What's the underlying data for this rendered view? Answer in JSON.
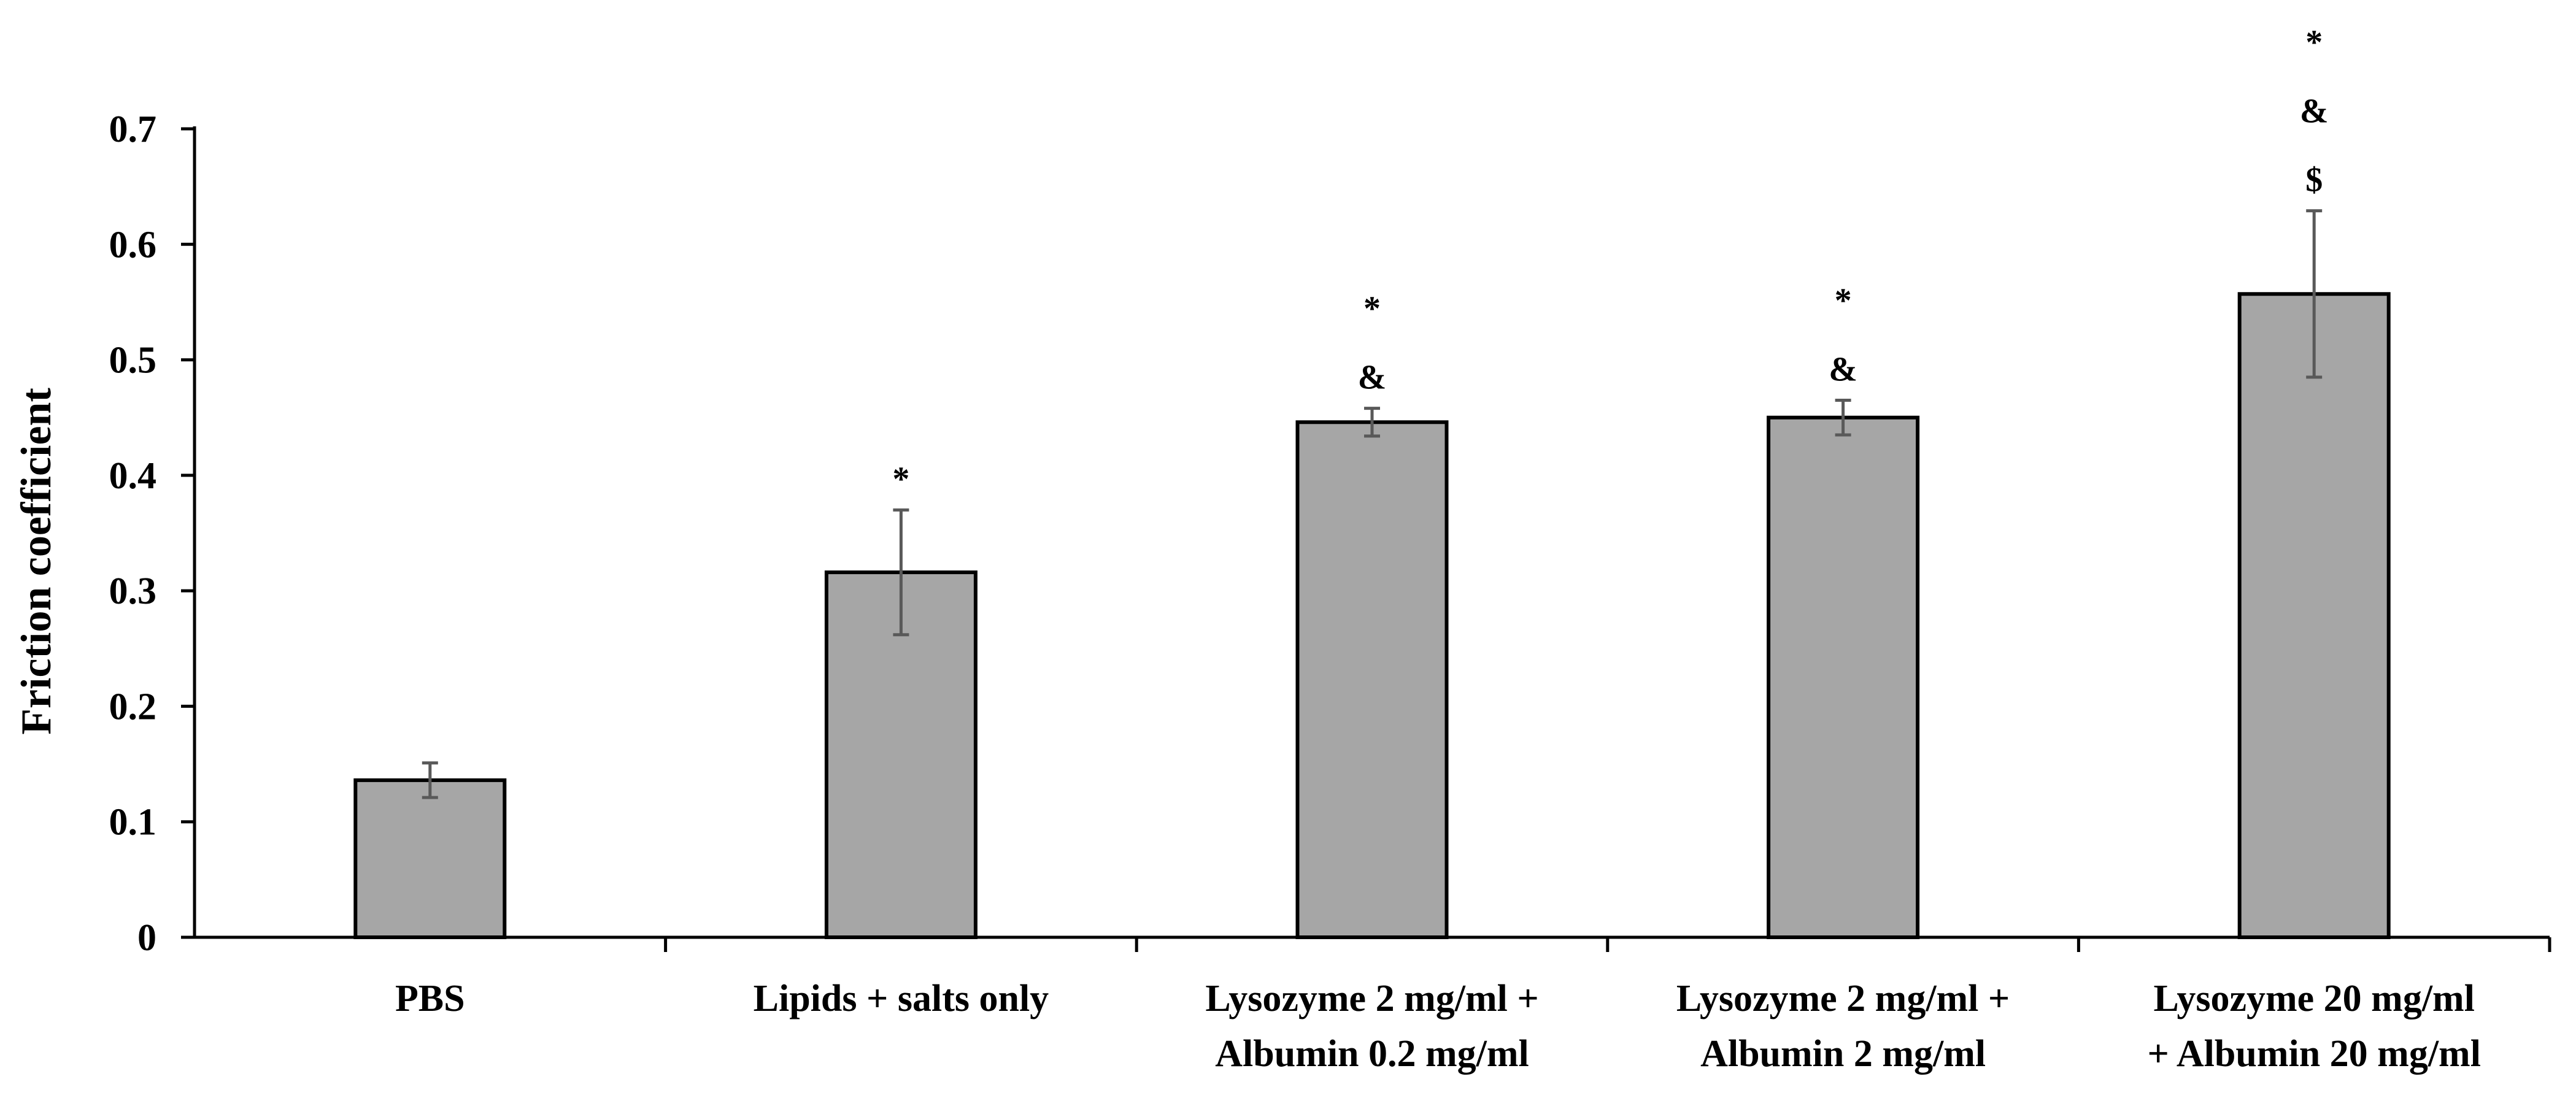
{
  "chart_data": {
    "type": "bar",
    "title": "",
    "xlabel": "",
    "ylabel": "Friction coefficient",
    "ylim": [
      0,
      0.7
    ],
    "yticks": [
      0,
      0.1,
      0.2,
      0.3,
      0.4,
      0.5,
      0.6,
      0.7
    ],
    "ytick_labels": [
      "0",
      "0.1",
      "0.2",
      "0.3",
      "0.4",
      "0.5",
      "0.6",
      "0.7"
    ],
    "grid": false,
    "legend": "none",
    "categories": [
      [
        "PBS"
      ],
      [
        "Lipids + salts only"
      ],
      [
        "Lysozyme 2 mg/ml +",
        "Albumin 0.2 mg/ml"
      ],
      [
        "Lysozyme 2 mg/ml +",
        "Albumin 2 mg/ml"
      ],
      [
        "Lysozyme 20 mg/ml",
        "+ Albumin 20 mg/ml"
      ]
    ],
    "values": [
      0.136,
      0.316,
      0.446,
      0.45,
      0.557
    ],
    "errors": [
      0.015,
      0.054,
      0.012,
      0.015,
      0.072
    ],
    "significance": [
      [],
      [
        "*"
      ],
      [
        "*",
        "&"
      ],
      [
        "*",
        "&"
      ],
      [
        "*",
        "&",
        "$"
      ]
    ],
    "colors": {
      "bar_fill": "#a6a6a6",
      "bar_stroke": "#000000",
      "error_bar": "#595959",
      "axis": "#000000"
    }
  }
}
